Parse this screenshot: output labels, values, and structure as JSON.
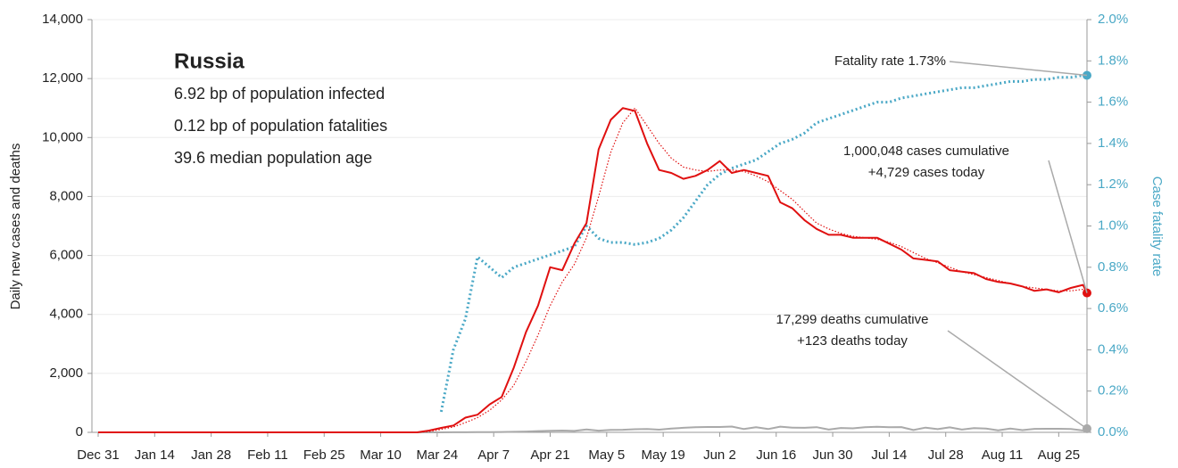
{
  "chart_data": {
    "type": "line",
    "y_label": "Daily new cases and deaths",
    "y2_label": "Case fatality rate",
    "x": [
      "Dec 31",
      "Mar 1",
      "Mar 19",
      "Mar 22",
      "Mar 25",
      "Mar 28",
      "Mar 31",
      "Apr 3",
      "Apr 6",
      "Apr 9",
      "Apr 12",
      "Apr 15",
      "Apr 18",
      "Apr 21",
      "Apr 24",
      "Apr 27",
      "Apr 30",
      "May 3",
      "May 6",
      "May 9",
      "May 12",
      "May 15",
      "May 18",
      "May 21",
      "May 24",
      "May 27",
      "May 30",
      "Jun 2",
      "Jun 5",
      "Jun 8",
      "Jun 11",
      "Jun 14",
      "Jun 17",
      "Jun 20",
      "Jun 23",
      "Jun 26",
      "Jun 29",
      "Jul 2",
      "Jul 5",
      "Jul 8",
      "Jul 11",
      "Jul 14",
      "Jul 17",
      "Jul 20",
      "Jul 23",
      "Jul 26",
      "Jul 29",
      "Aug 1",
      "Aug 4",
      "Aug 7",
      "Aug 10",
      "Aug 13",
      "Aug 16",
      "Aug 19",
      "Aug 22",
      "Aug 25",
      "Aug 28",
      "Aug 31",
      "Sep 1"
    ],
    "xlim": [
      "Dec 31",
      "Sep 1"
    ],
    "xticks": [
      "Dec 31",
      "Jan 14",
      "Jan 28",
      "Feb 11",
      "Feb 25",
      "Mar 10",
      "Mar 24",
      "Apr 7",
      "Apr 21",
      "May 5",
      "May 19",
      "Jun 2",
      "Jun 16",
      "Jun 30",
      "Jul 14",
      "Jul 28",
      "Aug 11",
      "Aug 25"
    ],
    "ylim": [
      0,
      14000
    ],
    "yticks": [
      0,
      {
        "value": 2000,
        "label": "2,000"
      },
      {
        "value": 4000,
        "label": "4,000"
      },
      {
        "value": 6000,
        "label": "6,000"
      },
      {
        "value": 8000,
        "label": "8,000"
      },
      {
        "value": 10000,
        "label": "10,000"
      },
      {
        "value": 12000,
        "label": "12,000"
      },
      {
        "value": 14000,
        "label": "14,000"
      }
    ],
    "y2lim": [
      0,
      2.0
    ],
    "y2ticks": [
      {
        "value": 0,
        "label": "0.0%"
      },
      {
        "value": 0.2,
        "label": "0.2%"
      },
      {
        "value": 0.4,
        "label": "0.4%"
      },
      {
        "value": 0.6,
        "label": "0.6%"
      },
      {
        "value": 0.8,
        "label": "0.8%"
      },
      {
        "value": 1.0,
        "label": "1.0%"
      },
      {
        "value": 1.2,
        "label": "1.2%"
      },
      {
        "value": 1.4,
        "label": "1.4%"
      },
      {
        "value": 1.6,
        "label": "1.6%"
      },
      {
        "value": 1.8,
        "label": "1.8%"
      },
      {
        "value": 2.0,
        "label": "2.0%"
      }
    ],
    "grid": true,
    "series": [
      {
        "color": "#e01010",
        "line_style": "solid",
        "end_marker": true,
        "values": [
          0,
          0,
          0,
          60,
          150,
          230,
          500,
          600,
          950,
          1200,
          2200,
          3400,
          4300,
          5600,
          5500,
          6400,
          7100,
          9600,
          10600,
          11000,
          10900,
          9800,
          8900,
          8800,
          8600,
          8700,
          8900,
          9200,
          8800,
          8900,
          8800,
          8700,
          7800,
          7600,
          7200,
          6900,
          6700,
          6700,
          6600,
          6600,
          6600,
          6400,
          6200,
          5900,
          5850,
          5800,
          5500,
          5450,
          5400,
          5200,
          5100,
          5050,
          4950,
          4800,
          4850,
          4750,
          4900,
          5000,
          4729
        ]
      },
      {
        "color": "#e01010",
        "line_style": "dotted",
        "values": [
          0,
          0,
          0,
          30,
          100,
          180,
          330,
          500,
          750,
          1100,
          1600,
          2400,
          3300,
          4300,
          5100,
          5700,
          6600,
          8000,
          9500,
          10500,
          11000,
          10400,
          9800,
          9300,
          9000,
          8900,
          8850,
          8900,
          8900,
          8850,
          8700,
          8500,
          8200,
          7900,
          7500,
          7100,
          6900,
          6750,
          6650,
          6600,
          6550,
          6450,
          6300,
          6100,
          5900,
          5750,
          5600,
          5450,
          5350,
          5250,
          5150,
          5050,
          4950,
          4900,
          4850,
          4800,
          4800,
          4850,
          4850
        ]
      },
      {
        "color": "#4aa8c6",
        "line_style": "dotted",
        "axis": "y2",
        "end_marker": true,
        "values": [
          null,
          null,
          null,
          null,
          0.1,
          0.4,
          0.55,
          0.85,
          0.8,
          0.75,
          0.8,
          0.82,
          0.84,
          0.86,
          0.88,
          0.9,
          1.0,
          0.94,
          0.92,
          0.92,
          0.91,
          0.92,
          0.94,
          0.98,
          1.04,
          1.12,
          1.2,
          1.25,
          1.28,
          1.3,
          1.32,
          1.36,
          1.4,
          1.42,
          1.45,
          1.5,
          1.52,
          1.54,
          1.56,
          1.58,
          1.6,
          1.6,
          1.62,
          1.63,
          1.64,
          1.65,
          1.66,
          1.67,
          1.67,
          1.68,
          1.69,
          1.7,
          1.7,
          1.71,
          1.71,
          1.72,
          1.72,
          1.73,
          1.73
        ]
      },
      {
        "color": "#aaaaaa",
        "line_style": "solid",
        "end_marker": true,
        "values": [
          0,
          0,
          0,
          0,
          0,
          3,
          4,
          8,
          10,
          13,
          18,
          28,
          42,
          51,
          60,
          47,
          101,
          58,
          86,
          88,
          107,
          113,
          91,
          127,
          153,
          174,
          181,
          182,
          197,
          112,
          174,
          113,
          194,
          161,
          153,
          176,
          93,
          147,
          135,
          173,
          188,
          175,
          177,
          80,
          160,
          108,
          168,
          95,
          144,
          129,
          70,
          129,
          77,
          119,
          121,
          122,
          111,
          63,
          123
        ]
      }
    ],
    "annotations": {
      "country": "Russia",
      "stats": [
        "6.92 bp of population infected",
        "0.12 bp of population fatalities",
        "39.6 median population age"
      ],
      "fatality": "Fatality rate 1.73%",
      "cases": [
        "1,000,048 cases cumulative",
        "+4,729 cases today"
      ],
      "deaths": [
        "17,299 deaths cumulative",
        "+123 deaths today"
      ]
    }
  }
}
